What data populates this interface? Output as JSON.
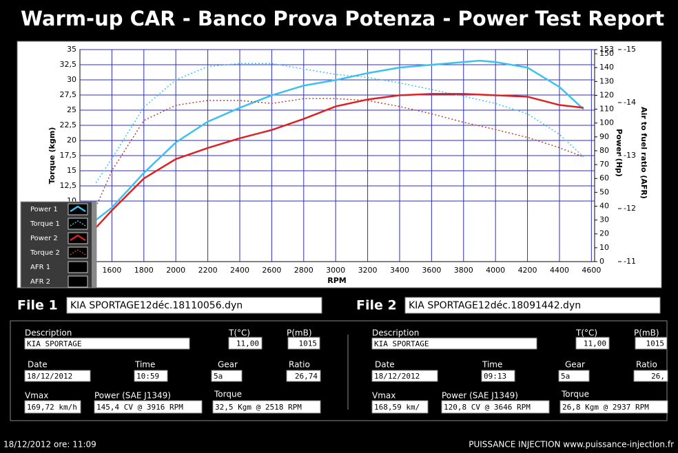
{
  "header": {
    "title": "Warm-up CAR  - Banco Prova Potenza -  Power Test Report"
  },
  "chart_data": {
    "type": "line",
    "x_label": "RPM",
    "y_label": "Torque (kgm)",
    "y2_label": "Power (Hp)",
    "y3_label": "Air to fuel ratio (AFR)",
    "x": [
      1500,
      1600,
      1800,
      2000,
      2200,
      2400,
      2600,
      2800,
      3000,
      3200,
      3400,
      3600,
      3800,
      3900,
      4000,
      4200,
      4400,
      4550
    ],
    "xlim": [
      1400,
      4620
    ],
    "xticks": [
      1600,
      1800,
      2000,
      2200,
      2400,
      2600,
      2800,
      3000,
      3200,
      3400,
      3600,
      3800,
      4000,
      4200,
      4400,
      4600
    ],
    "ylim": [
      0,
      35
    ],
    "yticks": [
      10,
      {
        "value": 12.5,
        "label": "12,5"
      },
      15,
      {
        "value": 17.5,
        "label": "17,5"
      },
      20,
      {
        "value": 22.5,
        "label": "22,5"
      },
      25,
      {
        "value": 27.5,
        "label": "27,5"
      },
      30,
      {
        "value": 32.5,
        "label": "32,5"
      },
      35
    ],
    "y2lim": [
      0,
      153
    ],
    "y2ticks": [
      0,
      10,
      20,
      30,
      40,
      50,
      60,
      70,
      80,
      90,
      100,
      110,
      120,
      130,
      140,
      150,
      153
    ],
    "y3lim": [
      -11,
      -15
    ],
    "y3ticks": [
      -11,
      -12,
      -13,
      -14,
      -15
    ],
    "grid": true,
    "series": [
      {
        "name": "Power 1",
        "color": "#3cc0f0",
        "style": "solid",
        "axis": "y2",
        "values": [
          30,
          39,
          64,
          86,
          101,
          111,
          120,
          127,
          131,
          136,
          140,
          142,
          144,
          145,
          144,
          140,
          126,
          110
        ]
      },
      {
        "name": "Torque 1",
        "color": "#3cc0f0",
        "style": "dotted",
        "axis": "y",
        "values": [
          13,
          17,
          25.5,
          30,
          32.2,
          32.7,
          32.7,
          31.8,
          30.9,
          30.4,
          29.5,
          28.4,
          27.3,
          26.7,
          26.1,
          24.4,
          21,
          17.3
        ]
      },
      {
        "name": "Power 2",
        "color": "#e02020",
        "style": "solid",
        "axis": "y2",
        "values": [
          24.5,
          37,
          60,
          74,
          82,
          89,
          95,
          103,
          112,
          117,
          120,
          121,
          121,
          120.5,
          120,
          119,
          113,
          111
        ]
      },
      {
        "name": "Torque 2",
        "color": "#c04020",
        "style": "dotted",
        "axis": "y",
        "values": [
          9,
          15,
          23.3,
          25.8,
          26.6,
          26.6,
          26.1,
          26.9,
          26.9,
          26.6,
          25.6,
          24.4,
          23,
          22.4,
          21.8,
          20.5,
          18.8,
          17.3
        ]
      },
      {
        "name": "AFR 1",
        "axis": "y3"
      },
      {
        "name": "AFR 2",
        "axis": "y3"
      }
    ]
  },
  "files": [
    {
      "label": "File 1",
      "filename": "KIA SPORTAGE12déc.18110056.dyn",
      "description_label": "Description",
      "description": "KIA SPORTAGE",
      "temperature_label": "T(°C)",
      "temperature": "11,00",
      "pressure_label": "P(mB)",
      "pressure": "1015",
      "date_label": "Date",
      "date": "18/12/2012",
      "time_label": "Time",
      "time": "10:59",
      "gear_label": "Gear",
      "gear": "5a",
      "ratio_label": "Ratio",
      "ratio": "26,74",
      "vmax_label": "Vmax",
      "vmax": "169,72 km/h",
      "power_label": "Power (SAE J1349)",
      "power": "145,4 CV  @ 3916  RPM",
      "torque_label": "Torque",
      "torque": "32,5 Kgm  @ 2518  RPM"
    },
    {
      "label": "File 2",
      "filename": "KIA SPORTAGE12déc.18091442.dyn",
      "description_label": "Description",
      "description": "KIA SPORTAGE",
      "temperature_label": "T(°C)",
      "temperature": "11,00",
      "pressure_label": "P(mB)",
      "pressure": "1015",
      "date_label": "Date",
      "date": "18/12/2012",
      "time_label": "Time",
      "time": "09:13",
      "gear_label": "Gear",
      "gear": "5a",
      "ratio_label": "Ratio",
      "ratio": "26,",
      "vmax_label": "Vmax",
      "vmax": "168,59 km/",
      "power_label": "Power (SAE J1349)",
      "power": "120,8 CV  @ 3646  RPM",
      "torque_label": "Torque",
      "torque": "26,8 Kgm  @ 2937  RPM"
    }
  ],
  "footer": {
    "left": "18/12/2012  ore: 11:09",
    "right": "PUISSANCE INJECTION www.puissance-injection.fr"
  }
}
